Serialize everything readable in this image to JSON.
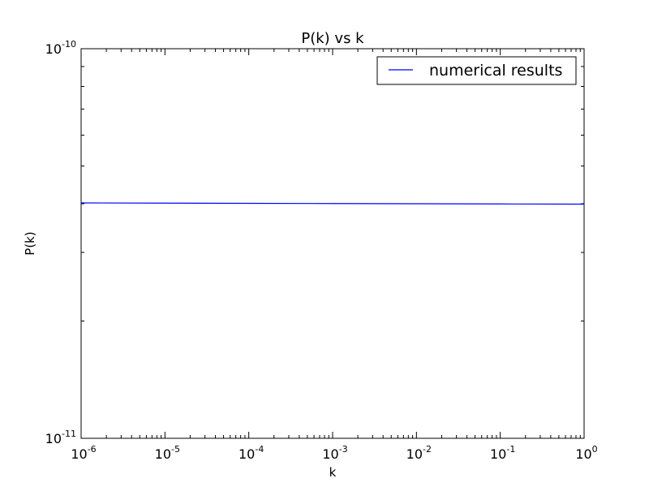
{
  "chart_data": {
    "type": "line",
    "title": "P(k) vs k",
    "xlabel": "k",
    "ylabel": "P(k)",
    "xscale": "log",
    "yscale": "log",
    "xlim": [
      1e-06,
      1
    ],
    "ylim": [
      1e-11,
      1e-10
    ],
    "grid": false,
    "legend_position": "top-right",
    "x_ticks": [
      {
        "value": 1e-06,
        "base": "10",
        "exp": "-6"
      },
      {
        "value": 1e-05,
        "base": "10",
        "exp": "-5"
      },
      {
        "value": 0.0001,
        "base": "10",
        "exp": "-4"
      },
      {
        "value": 0.001,
        "base": "10",
        "exp": "-3"
      },
      {
        "value": 0.01,
        "base": "10",
        "exp": "-2"
      },
      {
        "value": 0.1,
        "base": "10",
        "exp": "-1"
      },
      {
        "value": 1,
        "base": "10",
        "exp": "0"
      }
    ],
    "y_ticks": [
      {
        "value": 1e-11,
        "base": "10",
        "exp": "-11"
      },
      {
        "value": 1e-10,
        "base": "10",
        "exp": "-10"
      }
    ],
    "series": [
      {
        "name": "numerical results",
        "color": "#0000ff",
        "x": [
          1e-06,
          1e-05,
          0.0001,
          0.001,
          0.01,
          0.1,
          1
        ],
        "y": [
          4.02e-11,
          4.015e-11,
          4.01e-11,
          4.005e-11,
          4e-11,
          3.995e-11,
          3.99e-11
        ]
      }
    ]
  }
}
